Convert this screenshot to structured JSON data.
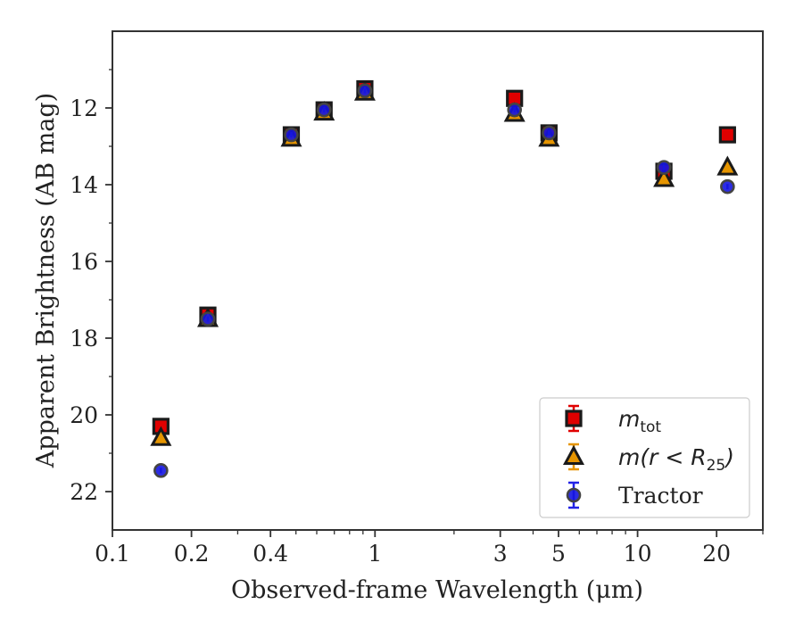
{
  "chart_data": {
    "type": "scatter",
    "title": "",
    "xlabel": "Observed-frame Wavelength (μm)",
    "ylabel": "Apparent Brightness (AB mag)",
    "xscale": "log",
    "xlim": [
      0.1,
      30
    ],
    "ylim": [
      23,
      10
    ],
    "y_inverted": true,
    "x_major_ticks": [
      {
        "value": 0.1,
        "label": "0.1"
      },
      {
        "value": 0.2,
        "label": "0.2"
      },
      {
        "value": 0.4,
        "label": "0.4"
      },
      {
        "value": 1,
        "label": "1"
      },
      {
        "value": 3,
        "label": "3"
      },
      {
        "value": 5,
        "label": "5"
      },
      {
        "value": 10,
        "label": "10"
      },
      {
        "value": 20,
        "label": "20"
      }
    ],
    "x_minor_ticks": [
      0.3,
      0.5,
      0.6,
      0.7,
      0.8,
      0.9,
      2,
      4,
      6,
      7,
      8,
      9,
      30
    ],
    "y_ticks": [
      {
        "value": 12,
        "label": "12"
      },
      {
        "value": 14,
        "label": "14"
      },
      {
        "value": 16,
        "label": "16"
      },
      {
        "value": 18,
        "label": "18"
      },
      {
        "value": 20,
        "label": "20"
      },
      {
        "value": 22,
        "label": "22"
      }
    ],
    "legend_position": "lower-right",
    "grid": false,
    "series": [
      {
        "name": "m_tot",
        "marker": "square",
        "color": "#e00000",
        "errorbar_color": "#e00000",
        "x": [
          0.153,
          0.231,
          0.48,
          0.64,
          0.915,
          3.4,
          4.6,
          12.6,
          22.0
        ],
        "y": [
          20.3,
          17.4,
          12.7,
          12.05,
          11.5,
          11.75,
          12.65,
          13.65,
          12.7
        ]
      },
      {
        "name": "m(r<R_25)",
        "marker": "triangle",
        "color": "#e69500",
        "errorbar_color": "#e69500",
        "x": [
          0.153,
          0.231,
          0.48,
          0.64,
          0.915,
          3.4,
          4.6,
          12.6,
          22.0
        ],
        "y": [
          20.6,
          17.5,
          12.8,
          12.12,
          11.6,
          12.15,
          12.8,
          13.85,
          13.55
        ]
      },
      {
        "name": "Tractor",
        "marker": "circle",
        "color": "#1515e0",
        "errorbar_color": "#2222e6",
        "x": [
          0.153,
          0.231,
          0.48,
          0.64,
          0.915,
          3.4,
          4.6,
          12.6,
          22.0
        ],
        "y": [
          21.45,
          17.5,
          12.7,
          12.05,
          11.55,
          12.05,
          12.65,
          13.55,
          14.05
        ]
      }
    ],
    "legend_entries": [
      {
        "base": "m",
        "sub": "tot",
        "rest": ""
      },
      {
        "base": "m(r < R",
        "sub": "25",
        "rest": ")"
      },
      {
        "base": "Tractor",
        "sub": "",
        "rest": ""
      }
    ]
  }
}
